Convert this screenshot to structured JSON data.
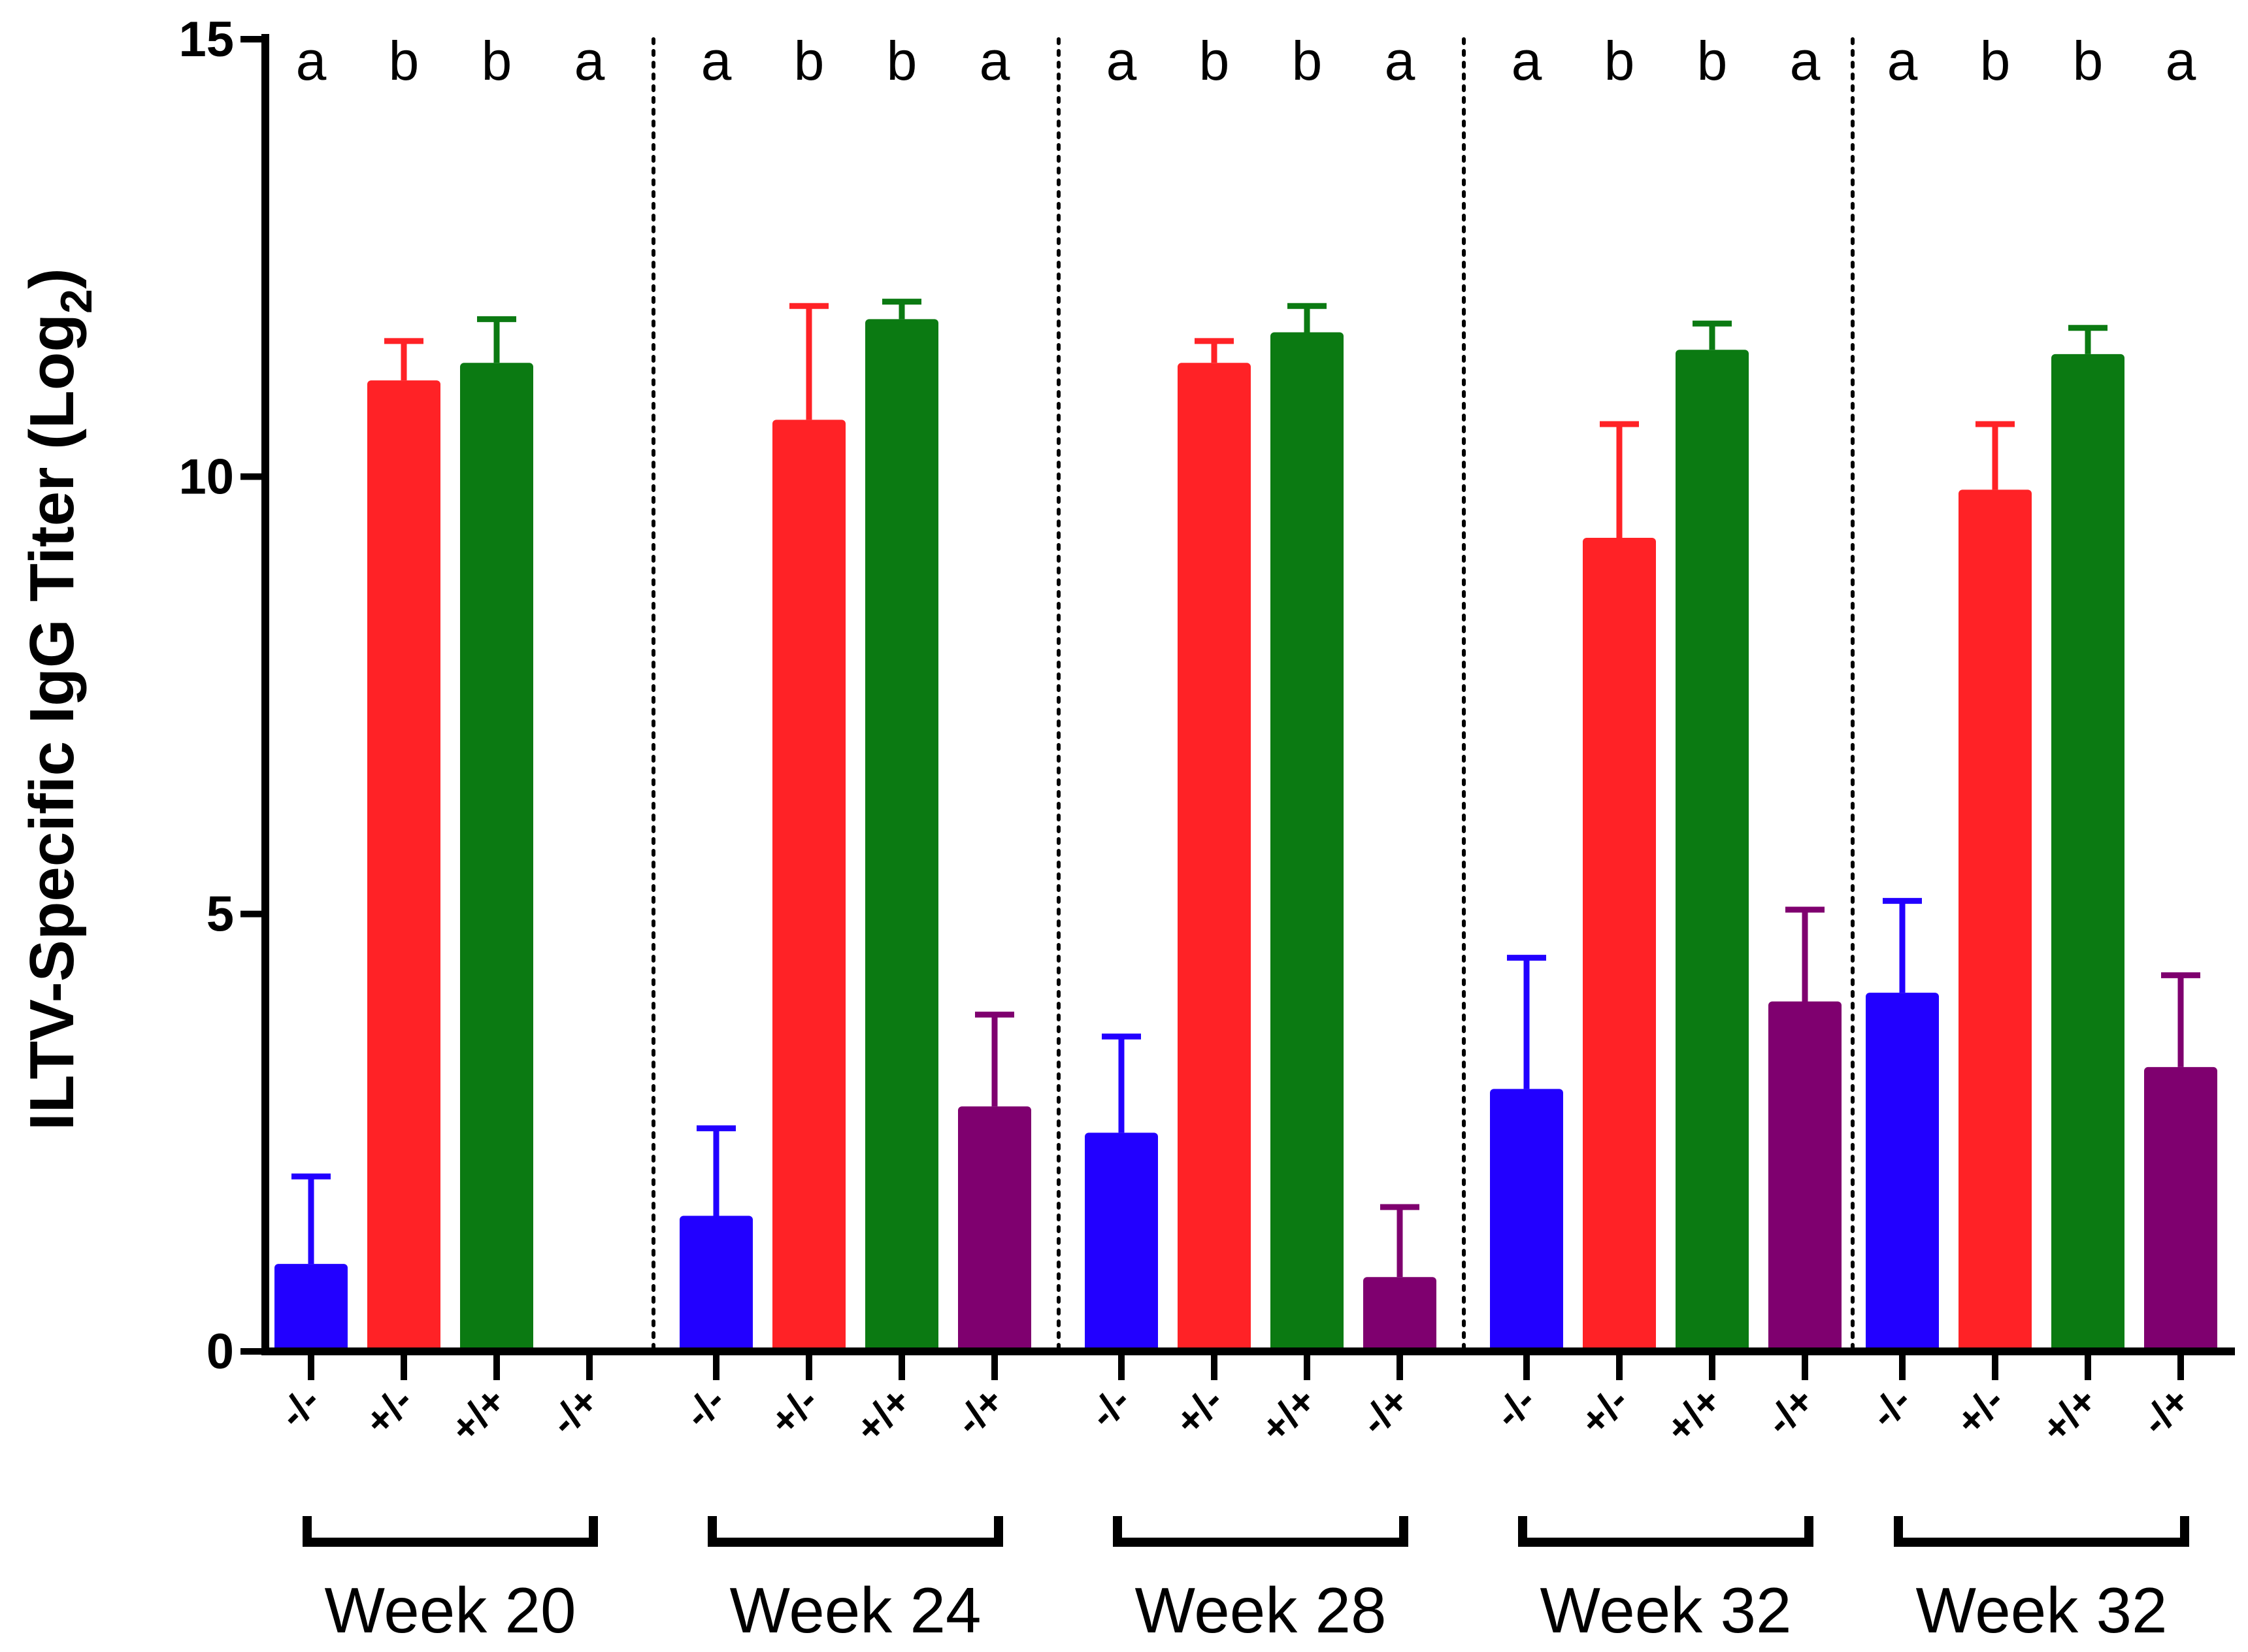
{
  "chart_data": {
    "type": "bar",
    "title": "",
    "xlabel": "",
    "ylabel": "ILTV-Specific IgG Titer (Log2)",
    "ylabel_parts": {
      "main": "ILTV-Specific IgG Titer (Log",
      "sub": "2",
      "close": ")"
    },
    "ylim": [
      0,
      15
    ],
    "yticks": [
      0,
      5,
      10,
      15
    ],
    "grid": false,
    "legend": "none",
    "categories": [
      "-/-",
      "+/-",
      "+/+",
      "-/+"
    ],
    "colors": [
      "#2200ff",
      "#ff2226",
      "#0b7a12",
      "#7f006f"
    ],
    "groups": [
      {
        "name": "Week 20",
        "values": [
          1.0,
          11.1,
          11.3,
          0.0
        ],
        "errors": [
          1.0,
          0.45,
          0.5,
          0.0
        ],
        "letters": [
          "a",
          "b",
          "b",
          "a"
        ]
      },
      {
        "name": "Week 24",
        "values": [
          1.55,
          10.65,
          11.8,
          2.8
        ],
        "errors": [
          1.0,
          1.3,
          0.2,
          1.05
        ],
        "letters": [
          "a",
          "b",
          "b",
          "a"
        ]
      },
      {
        "name": "Week 28",
        "values": [
          2.5,
          11.3,
          11.65,
          0.85
        ],
        "errors": [
          1.1,
          0.25,
          0.3,
          0.8
        ],
        "letters": [
          "a",
          "b",
          "b",
          "a"
        ]
      },
      {
        "name": "Week 32",
        "values": [
          3.0,
          9.3,
          11.45,
          4.0
        ],
        "errors": [
          1.5,
          1.3,
          0.3,
          1.05
        ],
        "letters": [
          "a",
          "b",
          "b",
          "a"
        ]
      },
      {
        "name": "Week 32",
        "values": [
          4.1,
          9.85,
          11.4,
          3.25
        ],
        "errors": [
          1.05,
          0.75,
          0.3,
          1.05
        ],
        "letters": [
          "a",
          "b",
          "b",
          "a"
        ]
      }
    ]
  }
}
